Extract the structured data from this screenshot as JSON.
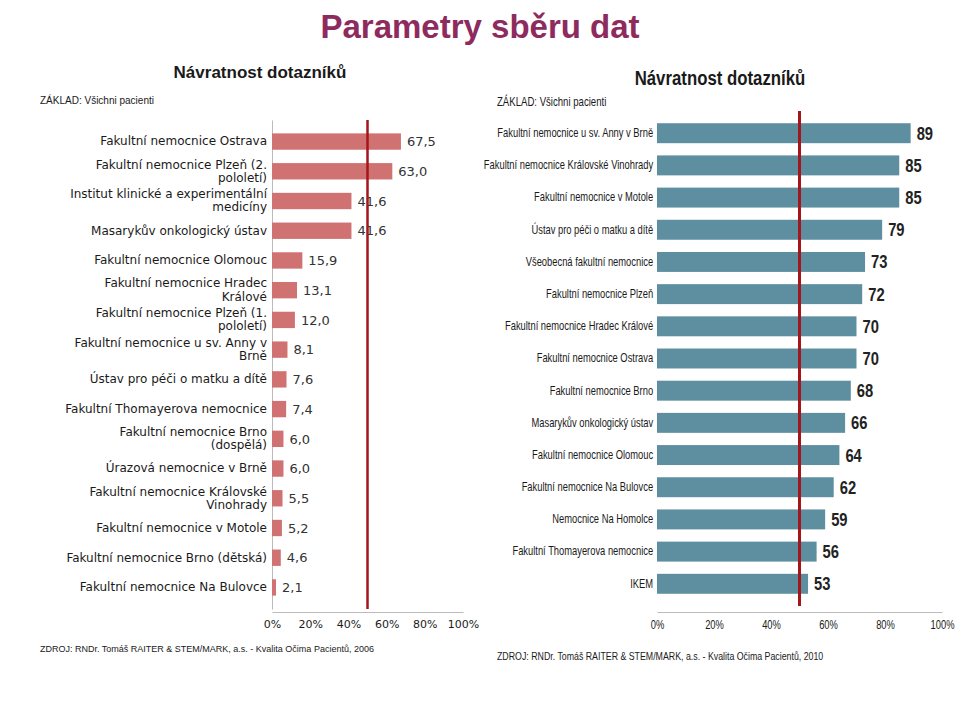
{
  "title": "Parametry sběru dat",
  "chart_data": [
    {
      "type": "bar",
      "orientation": "horizontal",
      "title": "Návratnost dotazníků",
      "subtitle": "ZÁKLAD: Všichni pacienti",
      "source": "ZDROJ: RNDr. Tomáš RAITER & STEM/MARK, a.s. - Kvalita Očima Pacientů, 2006",
      "categories": [
        "Fakultní nemocnice Ostrava",
        "Fakultní nemocnice Plzeň (2. pololetí)",
        "Institut klinické a experimentální medicíny",
        "Masarykův onkologický ústav",
        "Fakultní nemocnice Olomouc",
        "Fakultní nemocnice Hradec Králové",
        "Fakultní nemocnice Plzeň (1. pololetí)",
        "Fakultní nemocnice u sv. Anny v Brně",
        "Ústav pro péči o matku a dítě",
        "Fakultní Thomayerova nemocnice",
        "Fakultní nemocnice Brno (dospělá)",
        "Úrazová nemocnice v Brně",
        "Fakultní nemocnice Královské Vinohrady",
        "Fakultní nemocnice v Motole",
        "Fakultní nemocnice Brno (dětská)",
        "Fakultní nemocnice Na Bulovce"
      ],
      "values": [
        67.5,
        63.0,
        41.6,
        41.6,
        15.9,
        13.1,
        12.0,
        8.1,
        7.6,
        7.4,
        6.0,
        6.0,
        5.5,
        5.2,
        4.6,
        2.1
      ],
      "value_labels": [
        "67,5",
        "63,0",
        "41,6",
        "41,6",
        "15,9",
        "13,1",
        "12,0",
        "8,1",
        "7,6",
        "7,4",
        "6,0",
        "6,0",
        "5,5",
        "5,2",
        "4,6",
        "2,1"
      ],
      "data_labels": true,
      "color": "#d07272",
      "reference_line": 50,
      "xlim": [
        0,
        100
      ],
      "xticks": [
        {
          "value": 0,
          "label": "0%"
        },
        {
          "value": 20,
          "label": "20%"
        },
        {
          "value": 40,
          "label": "40%"
        },
        {
          "value": 60,
          "label": "60%"
        },
        {
          "value": 80,
          "label": "80%"
        },
        {
          "value": 100,
          "label": "100%"
        }
      ],
      "grid": false
    },
    {
      "type": "bar",
      "orientation": "horizontal",
      "title": "Návratnost dotazníků",
      "subtitle": "ZÁKLAD: Všichni pacienti",
      "source": "ZDROJ: RNDr. Tomáš RAITER & STEM/MARK, a.s. - Kvalita Očima Pacientů, 2010",
      "categories": [
        "Fakultní nemocnice u sv. Anny v Brně",
        "Fakultní nemocnice Královské Vinohrady",
        "Fakultní nemocnice v Motole",
        "Ústav pro péči o matku a dítě",
        "Všeobecná fakultní nemocnice",
        "Fakultní nemocnice Plzeň",
        "Fakultní nemocnice Hradec Králové",
        "Fakultní nemocnice Ostrava",
        "Fakultní nemocnice Brno",
        "Masarykův onkologický ústav",
        "Fakultní nemocnice Olomouc",
        "Fakultní nemocnice Na Bulovce",
        "Nemocnice Na Homolce",
        "Fakultní Thomayerova nemocnice",
        "IKEM"
      ],
      "values": [
        89,
        85,
        85,
        79,
        73,
        72,
        70,
        70,
        68,
        66,
        64,
        62,
        59,
        56,
        53
      ],
      "data_labels": true,
      "color": "#5e8fa1",
      "reference_line": 50,
      "xlim": [
        0,
        100
      ],
      "xticks": [
        {
          "value": 0,
          "label": "0%"
        },
        {
          "value": 20,
          "label": "20%"
        },
        {
          "value": 40,
          "label": "40%"
        },
        {
          "value": 60,
          "label": "60%"
        },
        {
          "value": 80,
          "label": "80%"
        },
        {
          "value": 100,
          "label": "100%"
        }
      ],
      "grid": false
    }
  ]
}
